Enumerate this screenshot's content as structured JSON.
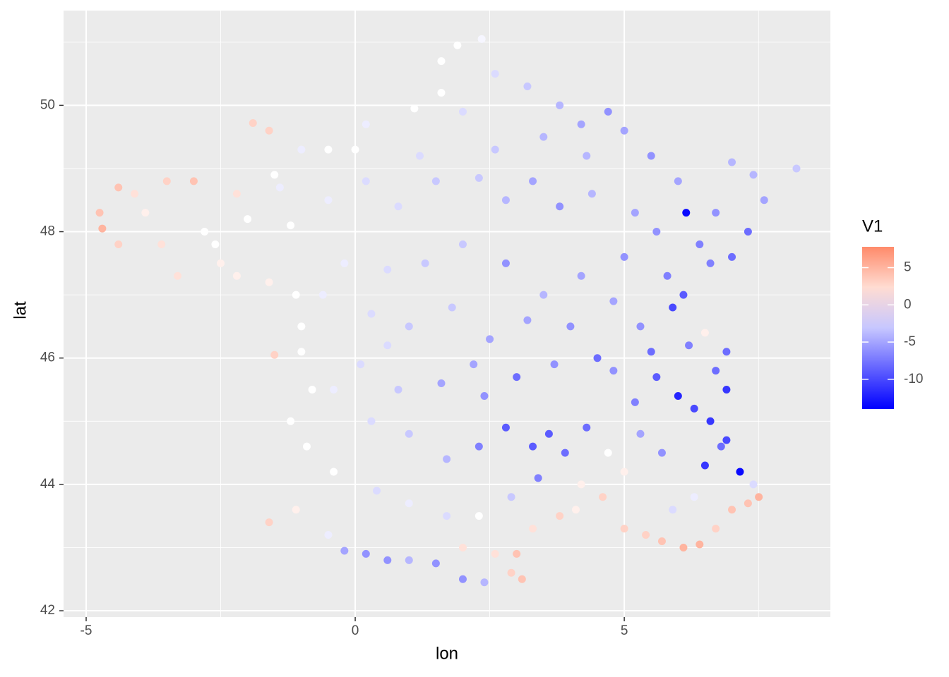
{
  "chart_data": {
    "type": "scatter",
    "x_label": "lon",
    "y_label": "lat",
    "xlim": [
      -5.42,
      8.83
    ],
    "ylim": [
      41.9,
      51.5
    ],
    "xticks": [
      -5,
      0,
      5
    ],
    "yticks": [
      42,
      44,
      46,
      48,
      50
    ],
    "xminor": [
      -2.5,
      2.5,
      7.5
    ],
    "yminor": [
      43,
      45,
      47,
      49,
      51
    ],
    "grid": true,
    "color_scale": {
      "title": "V1",
      "low": "#0000ff",
      "mid": "#ffffff",
      "high": "#ff8a6a",
      "limits": [
        -14,
        7.8
      ],
      "ticks": [
        5,
        0,
        -5,
        -10
      ]
    },
    "x": [
      -4.75,
      -4.7,
      -4.4,
      -4.4,
      -4.1,
      -3.9,
      -3.5,
      -3.3,
      -3.0,
      -2.8,
      -2.5,
      -2.2,
      -2.0,
      -1.9,
      -1.6,
      -1.6,
      -1.4,
      -1.2,
      -1.1,
      -1.5,
      -1.0,
      -1.2,
      -0.9,
      -1.1,
      -1.6,
      -0.5,
      -0.2,
      0.2,
      0.6,
      1.0,
      1.5,
      2.0,
      2.4,
      2.9,
      3.1,
      3.0,
      3.3,
      3.8,
      4.1,
      4.6,
      5.0,
      5.4,
      5.7,
      6.1,
      6.4,
      6.7,
      7.0,
      7.3,
      7.5,
      7.4,
      7.15,
      6.8,
      6.5,
      6.9,
      6.6,
      6.9,
      6.3,
      6.0,
      6.2,
      6.5,
      6.9,
      5.9,
      6.1,
      6.6,
      7.0,
      7.3,
      7.6,
      7.4,
      8.2,
      7.0,
      6.15,
      6.0,
      5.5,
      5.0,
      4.7,
      4.2,
      3.8,
      3.2,
      2.6,
      2.35,
      1.9,
      1.6,
      1.6,
      2.0,
      1.1,
      0.2,
      0.0,
      -0.5,
      -1.0,
      -1.5,
      -0.5,
      0.2,
      0.8,
      1.5,
      2.3,
      2.8,
      3.3,
      3.8,
      4.4,
      5.2,
      5.6,
      5.0,
      4.2,
      3.5,
      2.8,
      2.0,
      1.3,
      0.6,
      -0.2,
      -0.6,
      0.3,
      1.0,
      1.8,
      2.5,
      3.2,
      4.0,
      4.8,
      5.3,
      4.5,
      3.7,
      3.0,
      2.4,
      1.6,
      0.8,
      0.1,
      -0.4,
      0.3,
      1.0,
      1.7,
      2.3,
      2.8,
      3.3,
      3.6,
      3.9,
      4.3,
      4.7,
      5.0,
      5.3,
      5.7,
      5.6,
      5.2,
      4.8,
      3.4,
      2.9,
      2.3,
      1.7,
      1.0,
      0.4,
      -0.4,
      -0.8,
      -1.0,
      0.6,
      2.2,
      1.2,
      2.6,
      3.5,
      4.3,
      6.7,
      6.4,
      5.8,
      5.5,
      6.7,
      4.2,
      5.9,
      6.3,
      -2.6,
      -3.6,
      -2.2,
      2.0,
      2.6
    ],
    "series": [
      {
        "name": "V1",
        "y": [
          48.3,
          48.05,
          48.7,
          47.8,
          48.6,
          48.3,
          48.8,
          47.3,
          48.8,
          48.0,
          47.5,
          48.6,
          48.2,
          49.72,
          49.6,
          47.2,
          48.7,
          48.1,
          47.0,
          46.05,
          46.5,
          45.0,
          44.6,
          43.6,
          43.4,
          43.2,
          42.95,
          42.9,
          42.8,
          42.8,
          42.75,
          42.5,
          42.45,
          42.6,
          42.5,
          42.9,
          43.3,
          43.5,
          43.6,
          43.8,
          43.3,
          43.2,
          43.1,
          43.0,
          43.05,
          43.3,
          43.6,
          43.7,
          43.8,
          44.0,
          44.2,
          44.6,
          44.3,
          44.7,
          45.0,
          45.5,
          45.2,
          45.4,
          46.2,
          46.4,
          46.1,
          46.8,
          47.0,
          47.5,
          47.6,
          48.0,
          48.5,
          48.9,
          49.0,
          49.1,
          48.3,
          48.8,
          49.2,
          49.6,
          49.9,
          49.7,
          50.0,
          50.3,
          50.5,
          51.05,
          50.95,
          50.7,
          50.2,
          49.9,
          49.95,
          49.7,
          49.3,
          49.3,
          49.3,
          48.9,
          48.5,
          48.8,
          48.4,
          48.8,
          48.85,
          48.5,
          48.8,
          48.4,
          48.6,
          48.3,
          48.0,
          47.6,
          47.3,
          47.0,
          47.5,
          47.8,
          47.5,
          47.4,
          47.5,
          47.0,
          46.7,
          46.5,
          46.8,
          46.3,
          46.6,
          46.5,
          46.9,
          46.5,
          46.0,
          45.9,
          45.7,
          45.4,
          45.6,
          45.5,
          45.9,
          45.5,
          45.0,
          44.8,
          44.4,
          44.6,
          44.9,
          44.6,
          44.8,
          44.5,
          44.9,
          44.5,
          44.2,
          44.8,
          44.5,
          45.7,
          45.3,
          45.8,
          44.1,
          43.8,
          43.5,
          43.5,
          43.7,
          43.9,
          44.2,
          45.5,
          46.1,
          46.2,
          45.9,
          49.2,
          49.3,
          49.5,
          49.2,
          48.3,
          47.8,
          47.3,
          46.1,
          45.8,
          44.0,
          43.6,
          43.8,
          47.8,
          47.8,
          47.3,
          43.0,
          42.9
        ],
        "values": [
          4,
          5,
          4,
          3,
          2,
          1,
          3,
          2,
          4,
          0,
          1,
          2,
          0,
          3,
          3,
          1,
          -1,
          0,
          0,
          3,
          0,
          0,
          0,
          1,
          3,
          -1,
          -5,
          -6,
          -6,
          -4,
          -6,
          -6,
          -4,
          3,
          4,
          4,
          2,
          3,
          1,
          3,
          3,
          3,
          4,
          5,
          5,
          3,
          4,
          4,
          5,
          -2,
          -13.5,
          -8,
          -11,
          -10,
          -11,
          -11,
          -10,
          -12,
          -7,
          1,
          -8,
          -10,
          -9,
          -7,
          -8,
          -8,
          -5,
          -4,
          -3,
          -4,
          -13.5,
          -5,
          -6,
          -5,
          -6,
          -5,
          -4,
          -3,
          -2,
          -0.5,
          0,
          0,
          0,
          -2,
          0,
          -1,
          0,
          0,
          -1,
          0,
          -1,
          -2,
          -2,
          -3,
          -3,
          -4,
          -5,
          -6,
          -4,
          -5,
          -6,
          -6,
          -5,
          -4,
          -6,
          -3,
          -3,
          -2,
          -1,
          -1,
          -2,
          -3,
          -3,
          -5,
          -5,
          -6,
          -5,
          -6,
          -8,
          -6,
          -8,
          -6,
          -5,
          -3,
          -2,
          -1,
          -2,
          -3,
          -4,
          -7,
          -9,
          -9,
          -9,
          -8,
          -8,
          0,
          1,
          -5,
          -6,
          -9,
          -7,
          -6,
          -7,
          -3,
          0,
          -2,
          -1,
          -2,
          0,
          0,
          0,
          -2,
          -5,
          -2,
          -3,
          -4,
          -4,
          -6,
          -7,
          -7,
          -8,
          -8,
          1,
          -2,
          -1,
          0,
          2,
          1,
          2,
          2
        ]
      }
    ]
  }
}
